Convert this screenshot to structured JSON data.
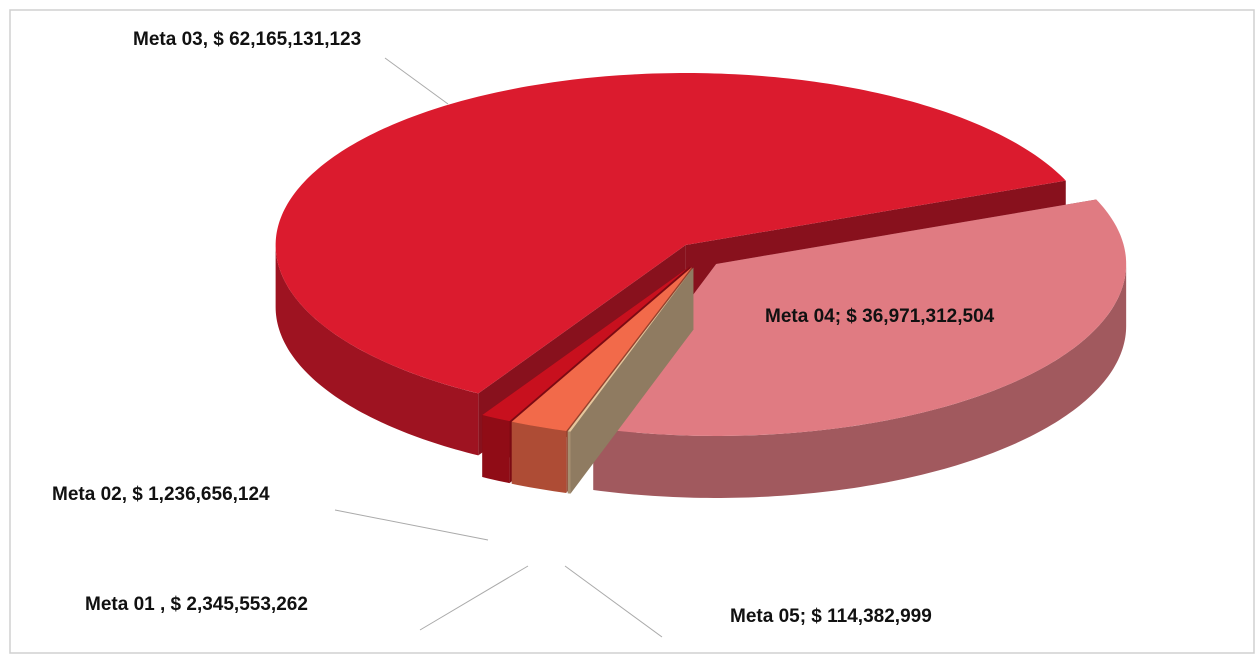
{
  "chart_data": {
    "type": "pie",
    "values": [
      2345553262,
      1236656124,
      62165131123,
      36971312504,
      114382999
    ],
    "value_labels": [
      "Meta 01 ,  $ 2,345,553,262",
      "Meta 02,  $ 1,236,656,124",
      "Meta 03,  $ 62,165,131,123",
      "Meta 04;  $ 36,971,312,504",
      "Meta 05;  $ 114,382,999"
    ],
    "colors": [
      "#f26a4a",
      "#c8101e",
      "#db1b2e",
      "#e07b82",
      "#e6c69c"
    ]
  }
}
